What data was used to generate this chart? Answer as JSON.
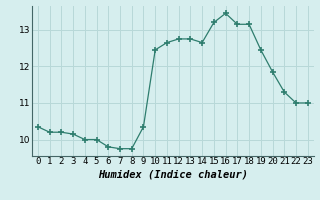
{
  "x": [
    0,
    1,
    2,
    3,
    4,
    5,
    6,
    7,
    8,
    9,
    10,
    11,
    12,
    13,
    14,
    15,
    16,
    17,
    18,
    19,
    20,
    21,
    22,
    23
  ],
  "y": [
    10.35,
    10.2,
    10.2,
    10.15,
    10.0,
    10.0,
    9.8,
    9.75,
    9.75,
    10.35,
    12.45,
    12.65,
    12.75,
    12.75,
    12.65,
    13.2,
    13.45,
    13.15,
    13.15,
    12.45,
    11.85,
    11.3,
    11.0,
    11.0
  ],
  "line_color": "#2e7d6e",
  "marker": "+",
  "marker_size": 4,
  "bg_color": "#d6eeee",
  "grid_color": "#b8d8d8",
  "xlabel": "Humidex (Indice chaleur)",
  "xlim": [
    -0.5,
    23.5
  ],
  "ylim": [
    9.55,
    13.65
  ],
  "yticks": [
    10,
    11,
    12,
    13
  ],
  "xticks": [
    0,
    1,
    2,
    3,
    4,
    5,
    6,
    7,
    8,
    9,
    10,
    11,
    12,
    13,
    14,
    15,
    16,
    17,
    18,
    19,
    20,
    21,
    22,
    23
  ],
  "xlabel_fontsize": 7.5,
  "tick_fontsize": 6.5
}
